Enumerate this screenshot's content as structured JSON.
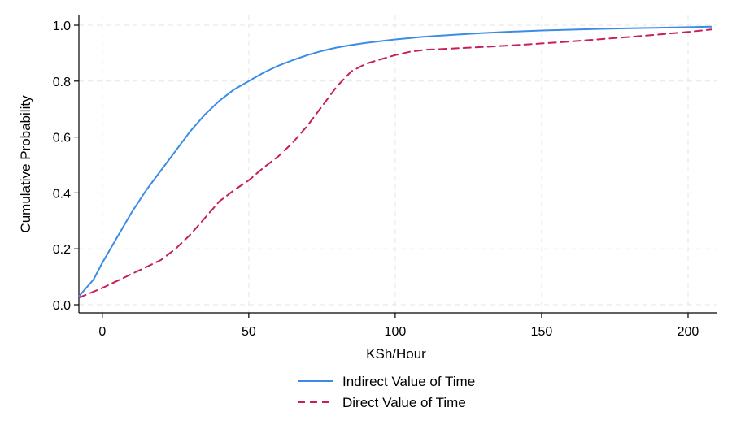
{
  "chart_data": {
    "type": "line",
    "xlabel": "KSh/Hour",
    "ylabel": "Cumulative Probability",
    "xlim": [
      -8,
      210
    ],
    "ylim": [
      0,
      1
    ],
    "xticks": [
      0,
      50,
      100,
      150,
      200
    ],
    "yticks": [
      0.0,
      0.2,
      0.4,
      0.6,
      0.8,
      1.0
    ],
    "ytick_labels": [
      "0.0",
      "0.2",
      "0.4",
      "0.6",
      "0.8",
      "1.0"
    ],
    "grid": true,
    "legend_position": "bottom",
    "series": [
      {
        "name": "Indirect Value of Time",
        "color": "#3a8ce6",
        "style": "solid",
        "x": [
          -8,
          -3,
          0,
          5,
          10,
          15,
          20,
          25,
          30,
          35,
          40,
          45,
          50,
          55,
          60,
          65,
          70,
          75,
          80,
          85,
          90,
          100,
          110,
          120,
          130,
          140,
          150,
          160,
          170,
          180,
          190,
          200,
          208
        ],
        "y": [
          0.03,
          0.09,
          0.15,
          0.24,
          0.33,
          0.41,
          0.48,
          0.55,
          0.62,
          0.68,
          0.73,
          0.77,
          0.8,
          0.83,
          0.855,
          0.875,
          0.893,
          0.908,
          0.92,
          0.929,
          0.937,
          0.949,
          0.959,
          0.966,
          0.972,
          0.977,
          0.981,
          0.984,
          0.987,
          0.989,
          0.991,
          0.993,
          0.995
        ]
      },
      {
        "name": "Direct Value of Time",
        "color": "#c81e5a",
        "style": "dashed",
        "x": [
          -8,
          0,
          5,
          10,
          15,
          20,
          25,
          30,
          35,
          40,
          45,
          50,
          55,
          60,
          65,
          70,
          75,
          80,
          85,
          90,
          95,
          100,
          105,
          110,
          120,
          130,
          140,
          150,
          160,
          170,
          180,
          190,
          200,
          208
        ],
        "y": [
          0.025,
          0.06,
          0.085,
          0.11,
          0.135,
          0.16,
          0.2,
          0.25,
          0.31,
          0.37,
          0.41,
          0.445,
          0.49,
          0.53,
          0.58,
          0.64,
          0.71,
          0.78,
          0.835,
          0.862,
          0.878,
          0.893,
          0.905,
          0.912,
          0.917,
          0.922,
          0.928,
          0.935,
          0.942,
          0.95,
          0.958,
          0.967,
          0.976,
          0.985
        ]
      }
    ]
  }
}
